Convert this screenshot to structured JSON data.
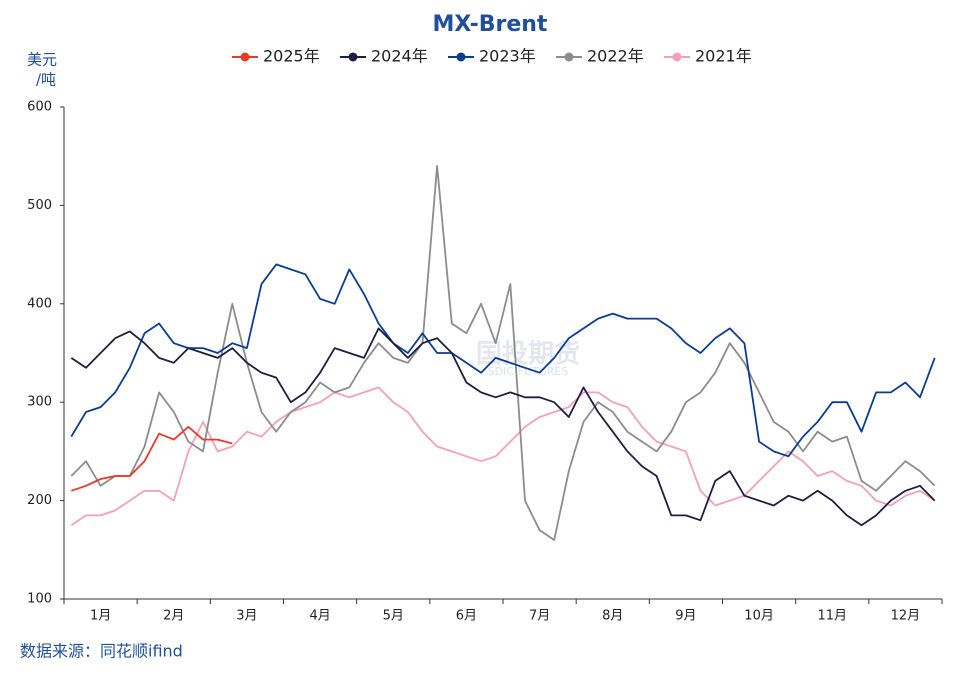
{
  "chart_data": {
    "type": "line",
    "title": "MX-Brent",
    "ylabel": [
      "美元",
      "/吨"
    ],
    "source": "数据来源：同花顺ifind",
    "watermark": [
      "国投期货",
      "SDIC FUTURES"
    ],
    "categories": [
      null,
      null,
      "1月",
      null,
      null,
      null,
      null,
      "2月",
      null,
      null,
      null,
      null,
      "3月",
      null,
      null,
      null,
      null,
      "4月",
      null,
      null,
      null,
      null,
      "5月",
      null,
      null,
      null,
      null,
      "6月",
      null,
      null,
      null,
      null,
      "7月",
      null,
      null,
      null,
      null,
      "8月",
      null,
      null,
      null,
      null,
      "9月",
      null,
      null,
      null,
      null,
      "10月",
      null,
      null,
      null,
      null,
      "11月",
      null,
      null,
      null,
      null,
      "12月",
      null,
      null
    ],
    "ylim": [
      100,
      600
    ],
    "yticks": [
      100,
      200,
      300,
      400,
      500,
      600
    ],
    "series": [
      {
        "name": "2025年",
        "color": "#e8392a",
        "values": [
          210,
          215,
          222,
          225,
          225,
          240,
          268,
          262,
          275,
          262,
          262,
          258,
          null,
          null,
          null,
          null,
          null,
          null,
          null,
          null,
          null,
          null,
          null,
          null,
          null,
          null,
          null,
          null,
          null,
          null,
          null,
          null,
          null,
          null,
          null,
          null,
          null,
          null,
          null,
          null,
          null,
          null,
          null,
          null,
          null,
          null,
          null,
          null,
          null,
          null,
          null,
          null,
          null,
          null,
          null,
          null,
          null,
          null,
          null,
          null
        ]
      },
      {
        "name": "2024年",
        "color": "#1c1f3f",
        "values": [
          345,
          335,
          350,
          365,
          372,
          360,
          345,
          340,
          355,
          350,
          345,
          355,
          340,
          330,
          325,
          300,
          310,
          330,
          355,
          350,
          345,
          375,
          360,
          345,
          360,
          365,
          350,
          320,
          310,
          305,
          310,
          305,
          305,
          300,
          285,
          315,
          290,
          270,
          250,
          235,
          225,
          185,
          185,
          180,
          220,
          230,
          205,
          200,
          195,
          205,
          200,
          210,
          200,
          185,
          175,
          185,
          200,
          210,
          215,
          200
        ]
      },
      {
        "name": "2023年",
        "color": "#0a3d91",
        "values": [
          265,
          290,
          295,
          310,
          335,
          370,
          380,
          360,
          355,
          355,
          350,
          360,
          355,
          420,
          440,
          435,
          430,
          405,
          400,
          435,
          410,
          380,
          360,
          350,
          370,
          350,
          350,
          340,
          330,
          345,
          340,
          335,
          330,
          345,
          365,
          375,
          385,
          390,
          385,
          385,
          385,
          375,
          360,
          350,
          365,
          375,
          360,
          260,
          250,
          245,
          265,
          280,
          300,
          300,
          270,
          310,
          310,
          320,
          305,
          345
        ]
      },
      {
        "name": "2022年",
        "color": "#8c8c8c",
        "values": [
          225,
          240,
          215,
          225,
          225,
          255,
          310,
          290,
          260,
          250,
          330,
          400,
          340,
          290,
          270,
          290,
          300,
          320,
          310,
          315,
          340,
          360,
          345,
          340,
          360,
          540,
          380,
          370,
          400,
          360,
          420,
          200,
          170,
          160,
          230,
          280,
          300,
          290,
          270,
          260,
          250,
          270,
          300,
          310,
          330,
          360,
          340,
          310,
          280,
          270,
          250,
          270,
          260,
          265,
          220,
          210,
          225,
          240,
          230,
          215
        ]
      },
      {
        "name": "2021年",
        "color": "#f4a0b8",
        "values": [
          175,
          185,
          185,
          190,
          200,
          210,
          210,
          200,
          250,
          280,
          250,
          255,
          270,
          265,
          280,
          290,
          295,
          300,
          310,
          305,
          310,
          315,
          300,
          290,
          270,
          255,
          250,
          245,
          240,
          245,
          260,
          275,
          285,
          290,
          295,
          310,
          310,
          300,
          295,
          275,
          260,
          255,
          250,
          210,
          195,
          200,
          205,
          220,
          235,
          250,
          240,
          225,
          230,
          220,
          215,
          200,
          195,
          205,
          210,
          200
        ]
      }
    ]
  }
}
